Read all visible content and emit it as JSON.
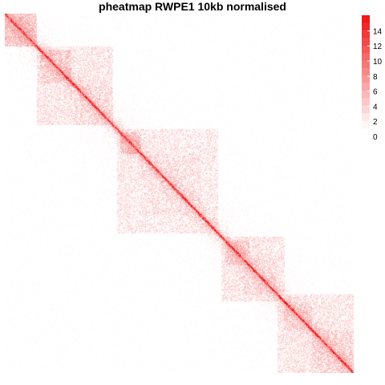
{
  "chart_data": {
    "type": "heatmap",
    "title": "pheatmap RWPE1 10kb normalised",
    "xlabel": "",
    "ylabel": "",
    "symmetric": true,
    "diagonal_peak_value": 15,
    "value_range": [
      0,
      15
    ],
    "color_low": "#ffffff",
    "color_high": "#ee1111",
    "legend": {
      "position": "right",
      "ticks": [
        14,
        12,
        10,
        8,
        6,
        4,
        2,
        0
      ]
    },
    "blocks": [
      {
        "start": 0.0,
        "end": 0.09,
        "intensity": 4.5
      },
      {
        "start": 0.09,
        "end": 0.31,
        "intensity": 3.0
      },
      {
        "start": 0.1,
        "end": 0.19,
        "intensity": 4.0
      },
      {
        "start": 0.2,
        "end": 0.31,
        "intensity": 3.5
      },
      {
        "start": 0.32,
        "end": 0.61,
        "intensity": 2.8
      },
      {
        "start": 0.33,
        "end": 0.39,
        "intensity": 4.5
      },
      {
        "start": 0.39,
        "end": 0.56,
        "intensity": 3.2
      },
      {
        "start": 0.62,
        "end": 0.8,
        "intensity": 3.0
      },
      {
        "start": 0.63,
        "end": 0.7,
        "intensity": 4.2
      },
      {
        "start": 0.68,
        "end": 0.78,
        "intensity": 3.6
      },
      {
        "start": 0.78,
        "end": 1.0,
        "intensity": 3.0
      },
      {
        "start": 0.8,
        "end": 0.88,
        "intensity": 3.8
      },
      {
        "start": 0.88,
        "end": 1.0,
        "intensity": 3.8
      }
    ],
    "background_intensity": 0.35
  }
}
